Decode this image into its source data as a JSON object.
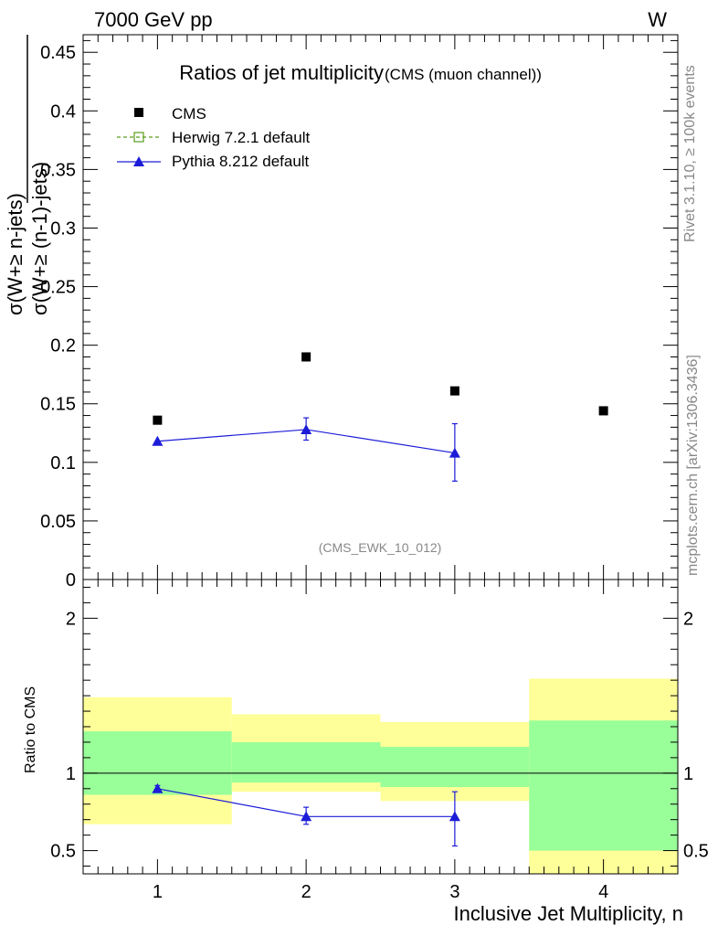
{
  "header": {
    "left": "7000 GeV pp",
    "right": "W"
  },
  "side": {
    "rivet": "Rivet 3.1.10, ≥ 100k events",
    "mcplots": "mcplots.cern.ch [arXiv:1306.3436]"
  },
  "chart_data": [
    {
      "type": "scatter",
      "title": "Ratios of jet multiplicity",
      "subtitle": "(CMS (muon channel))",
      "watermark": "(CMS_EWK_10_012)",
      "ylabel_numerator": "σ(W+≥ n-jets)",
      "ylabel_denominator": "σ(W+≥ (n-1)-jets)",
      "xlim": [
        0.5,
        4.5
      ],
      "ylim": [
        0,
        0.465
      ],
      "yticks": [
        0,
        0.05,
        0.1,
        0.15,
        0.2,
        0.25,
        0.3,
        0.35,
        0.4,
        0.45
      ],
      "ytick_labels": [
        "0",
        "0.05",
        "0.1",
        "0.15",
        "0.2",
        "0.25",
        "0.3",
        "0.35",
        "0.4",
        "0.45"
      ],
      "legend_position": "top-left",
      "series": [
        {
          "name": "CMS",
          "color": "#000000",
          "marker": "square",
          "x": [
            1,
            2,
            3,
            4
          ],
          "y": [
            0.136,
            0.19,
            0.161,
            0.144
          ]
        },
        {
          "name": "Herwig 7.2.1 default",
          "color": "#5a9e1a",
          "marker": "open-square",
          "line": "dashed",
          "x": [],
          "y": []
        },
        {
          "name": "Pythia 8.212 default",
          "color": "#1c1cd8",
          "marker": "triangle",
          "x": [
            1,
            2,
            3
          ],
          "y": [
            0.118,
            0.128,
            0.108
          ],
          "err_low": [
            0.118,
            0.119,
            0.084
          ],
          "err_high": [
            0.118,
            0.138,
            0.133
          ]
        }
      ]
    },
    {
      "type": "scatter",
      "ylabel": "Ratio to CMS",
      "xlabel": "Inclusive Jet Multiplicity, n",
      "xlim": [
        0.5,
        4.5
      ],
      "xticks": [
        1,
        2,
        3,
        4
      ],
      "xtick_labels": [
        "1",
        "2",
        "3",
        "4"
      ],
      "ylim": [
        0.35,
        2.25
      ],
      "yticks": [
        0.5,
        1,
        2
      ],
      "ytick_labels": [
        "0.5",
        "1",
        "2"
      ],
      "bands": [
        {
          "x0": 0.5,
          "x1": 1.5,
          "yellow": [
            0.67,
            1.49
          ],
          "green": [
            0.86,
            1.27
          ]
        },
        {
          "x0": 1.5,
          "x1": 2.5,
          "yellow": [
            0.88,
            1.38
          ],
          "green": [
            0.94,
            1.2
          ]
        },
        {
          "x0": 2.5,
          "x1": 3.5,
          "yellow": [
            0.82,
            1.33
          ],
          "green": [
            0.91,
            1.17
          ]
        },
        {
          "x0": 3.5,
          "x1": 4.5,
          "yellow": [
            0.35,
            1.61
          ],
          "green": [
            0.5,
            1.34
          ]
        }
      ],
      "colors": {
        "green": "#99ff99",
        "yellow": "#ffff99"
      },
      "series": [
        {
          "name": "Pythia 8.212 default",
          "color": "#1c1cd8",
          "x": [
            1,
            2,
            3
          ],
          "y": [
            0.9,
            0.72,
            0.72
          ],
          "err_low": [
            0.89,
            0.67,
            0.53
          ],
          "err_high": [
            0.92,
            0.78,
            0.88
          ]
        }
      ]
    }
  ]
}
